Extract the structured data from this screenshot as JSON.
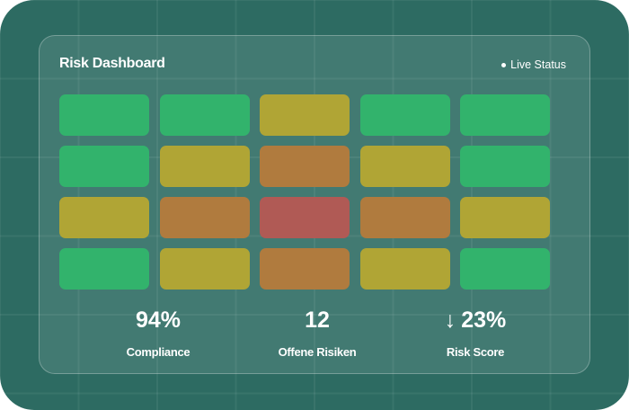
{
  "header": {
    "title": "Risk Dashboard",
    "live_label": "Live Status"
  },
  "colors": {
    "background": "#2d6b62",
    "low": "#32b36c",
    "medium": "#b0a535",
    "high": "#b07b3e",
    "critical": "#b05a55"
  },
  "heatmap": [
    [
      "low",
      "low",
      "medium",
      "low",
      "low"
    ],
    [
      "low",
      "medium",
      "high",
      "medium",
      "low"
    ],
    [
      "medium",
      "high",
      "critical",
      "high",
      "medium"
    ],
    [
      "low",
      "medium",
      "high",
      "medium",
      "low"
    ]
  ],
  "stats": [
    {
      "value": "94%",
      "label": "Compliance",
      "arrow": ""
    },
    {
      "value": "12",
      "label": "Offene Risiken",
      "arrow": ""
    },
    {
      "value": "23%",
      "label": "Risk Score",
      "arrow": "↓"
    }
  ]
}
